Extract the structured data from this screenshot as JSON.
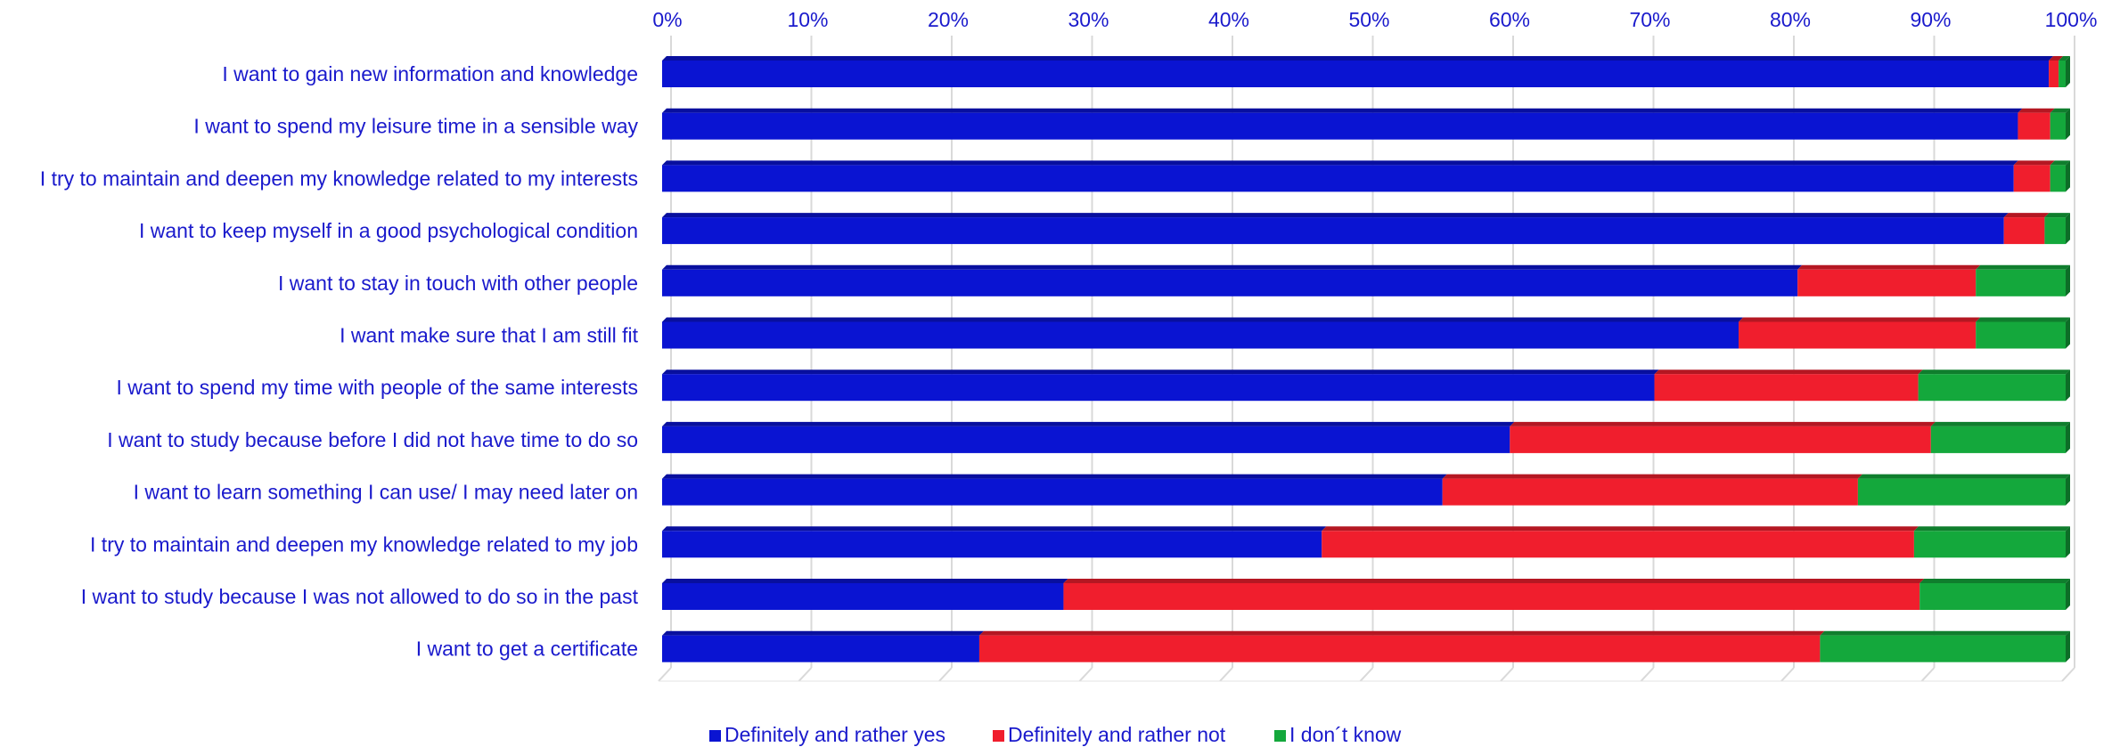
{
  "chart_data": {
    "type": "bar",
    "orientation": "horizontal",
    "stacked": "percent",
    "x_ticks": [
      "0%",
      "10%",
      "20%",
      "30%",
      "40%",
      "50%",
      "60%",
      "70%",
      "80%",
      "90%",
      "100%"
    ],
    "xlim": [
      0,
      100
    ],
    "grid": true,
    "legend_position": "bottom",
    "categories": [
      "I want to gain new information and knowledge",
      "I want to spend my leisure time in a sensible way",
      "I try to maintain and deepen my knowledge related to my interests",
      "I want to keep myself in a good psychological condition",
      "I want to stay in touch with other people",
      "I want make sure that I am still fit",
      "I want to spend my time with people of the same interests",
      "I want to study because before I did not have time to do so",
      "I want to learn something I can use/ I may need later on",
      "I try to maintain and deepen my knowledge related to my job",
      "I want to study because I was not allowed to do so in the past",
      "I want to get a certificate"
    ],
    "series": [
      {
        "name": "Definitely and rather yes",
        "color": "#0a14d2",
        "values": [
          98.8,
          96.6,
          96.3,
          95.6,
          80.9,
          76.7,
          70.7,
          60.4,
          55.6,
          47.0,
          28.6,
          22.6
        ]
      },
      {
        "name": "Definitely and rather not",
        "color": "#f01e2d",
        "values": [
          0.7,
          2.3,
          2.6,
          2.9,
          12.7,
          16.9,
          18.8,
          30.0,
          29.6,
          42.2,
          61.0,
          59.9
        ]
      },
      {
        "name": "I don´t know",
        "color": "#14a83c",
        "values": [
          0.5,
          1.1,
          1.1,
          1.5,
          6.4,
          6.4,
          10.5,
          9.6,
          14.8,
          10.8,
          10.4,
          17.5
        ]
      }
    ]
  }
}
